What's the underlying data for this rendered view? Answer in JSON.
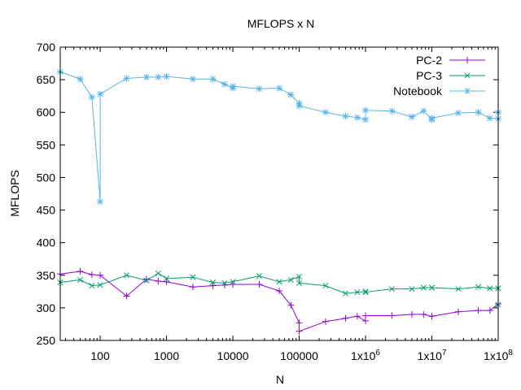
{
  "chart_data": {
    "type": "line",
    "title": "MFLOPS x N",
    "xlabel": "N",
    "ylabel": "MFLOPS",
    "x_scale": "log",
    "xlim": [
      25,
      100000000
    ],
    "ylim": [
      250,
      700
    ],
    "x_ticks": [
      {
        "value": 100,
        "label": "100"
      },
      {
        "value": 1000,
        "label": "1000"
      },
      {
        "value": 10000,
        "label": "10000"
      },
      {
        "value": 100000,
        "label": "100000"
      },
      {
        "value": 1000000,
        "label": "1x10^6"
      },
      {
        "value": 10000000,
        "label": "1x10^7"
      },
      {
        "value": 100000000,
        "label": "1x10^8"
      }
    ],
    "y_ticks": [
      250,
      300,
      350,
      400,
      450,
      500,
      550,
      600,
      650,
      700
    ],
    "grid": false,
    "legend_position": "top-right",
    "series": [
      {
        "name": "PC-2",
        "color": "#9400d3",
        "marker": "plus",
        "x": [
          25,
          50,
          75,
          100,
          250,
          500,
          750,
          1000,
          2500,
          5000,
          7500,
          10000,
          25000,
          50000,
          75000,
          100000,
          100000,
          250000,
          500000,
          750000,
          1000000,
          1000000,
          2500000,
          5000000,
          7500000,
          10000000,
          25000000,
          50000000,
          75000000,
          100000000
        ],
        "values": [
          352,
          356,
          351,
          350,
          318,
          344,
          341,
          340,
          332,
          334,
          335,
          336,
          336,
          326,
          304,
          277,
          264,
          279,
          284,
          287,
          280,
          288,
          288,
          290,
          290,
          287,
          294,
          296,
          296,
          306
        ]
      },
      {
        "name": "PC-3",
        "color": "#009e73",
        "marker": "cross",
        "x": [
          25,
          50,
          75,
          100,
          250,
          500,
          750,
          1000,
          2500,
          5000,
          7500,
          10000,
          25000,
          50000,
          75000,
          100000,
          100000,
          250000,
          500000,
          750000,
          1000000,
          1000000,
          2500000,
          5000000,
          7500000,
          10000000,
          10000000,
          25000000,
          50000000,
          75000000,
          100000000,
          100000000
        ],
        "values": [
          339,
          343,
          334,
          335,
          350,
          342,
          353,
          345,
          347,
          339,
          338,
          340,
          349,
          340,
          343,
          348,
          338,
          334,
          322,
          324,
          325,
          324,
          329,
          329,
          331,
          331,
          331,
          329,
          332,
          330,
          330,
          305
        ]
      },
      {
        "name": "Notebook",
        "color": "#56b4e9",
        "marker": "star",
        "x": [
          25,
          50,
          75,
          100,
          100,
          250,
          500,
          750,
          1000,
          2500,
          5000,
          7500,
          10000,
          10000,
          25000,
          50000,
          75000,
          100000,
          100000,
          250000,
          500000,
          750000,
          1000000,
          1000000,
          2500000,
          5000000,
          7500000,
          10000000,
          10000000,
          25000000,
          50000000,
          75000000,
          100000000,
          100000000
        ],
        "values": [
          662,
          651,
          623,
          463,
          628,
          652,
          654,
          654,
          655,
          651,
          651,
          643,
          637,
          640,
          636,
          637,
          627,
          614,
          610,
          600,
          594,
          592,
          589,
          603,
          602,
          593,
          602,
          589,
          591,
          599,
          600,
          591,
          590,
          600
        ]
      }
    ]
  }
}
